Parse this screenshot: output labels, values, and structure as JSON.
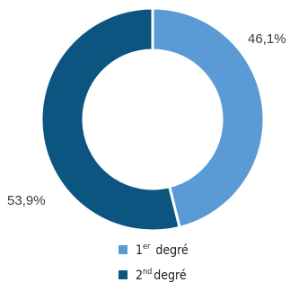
{
  "chart_data": {
    "type": "pie",
    "donut": true,
    "categories": [
      "1er degré",
      "2nd degré"
    ],
    "values": [
      46.1,
      53.9
    ],
    "labels": [
      "46,1%",
      "53,9%"
    ],
    "colors": [
      "#5b9bd5",
      "#0b5580"
    ],
    "legend": {
      "position": "bottom",
      "items": [
        {
          "base": "1",
          "sup": "er",
          "rest": " degré"
        },
        {
          "base": "2",
          "sup": "nd",
          "rest": "degré"
        }
      ]
    }
  }
}
